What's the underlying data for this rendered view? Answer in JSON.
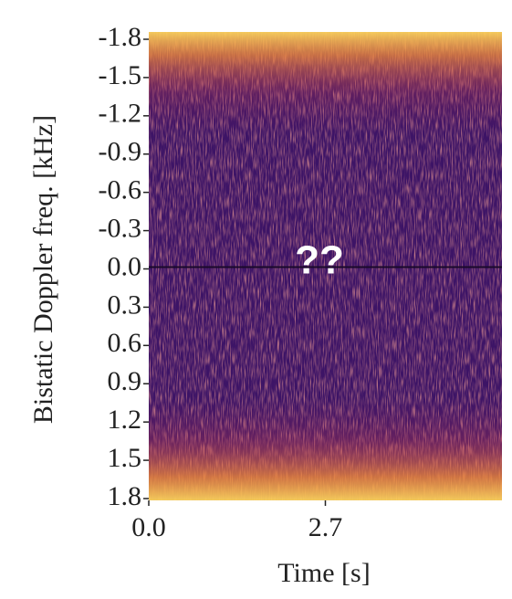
{
  "chart_data": {
    "type": "spectrogram",
    "xlabel": "Time [s]",
    "ylabel": "Bistatic Doppler freq. [kHz]",
    "annotation": "??",
    "xlim": [
      0,
      5.4
    ],
    "xticks": [
      {
        "value": 0,
        "label": "0.0"
      },
      2.7
    ],
    "ylim": [
      -1.8,
      1.8
    ],
    "y_inverted": true,
    "yticks": [
      -1.8,
      -1.5,
      -1.2,
      -0.9,
      -0.6,
      -0.3,
      {
        "value": 0,
        "label": "0.0"
      },
      0.3,
      0.6,
      0.9,
      1.2,
      1.5,
      1.8
    ]
  }
}
